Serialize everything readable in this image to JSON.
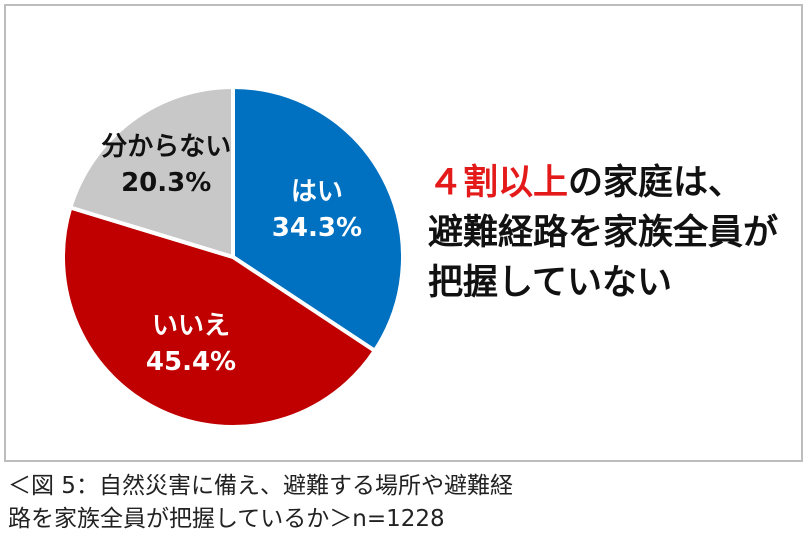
{
  "chart_data": {
    "type": "pie",
    "slices": [
      {
        "label": "はい",
        "value": 34.3,
        "value_label": "34.3%",
        "color": "#0070c0",
        "label_color": "#ffffff"
      },
      {
        "label": "いいえ",
        "value": 45.4,
        "value_label": "45.4%",
        "color": "#c00000",
        "label_color": "#ffffff"
      },
      {
        "label": "分からない",
        "value": 20.3,
        "value_label": "20.3%",
        "color": "#c8c8c8",
        "label_color": "#111111"
      }
    ]
  },
  "headline": {
    "accent": "４割以上",
    "line1_rest": "の家庭は、",
    "line2": "避難経路を家族全員が",
    "line3": "把握していない",
    "accent_color": "#e41a1a"
  },
  "caption": {
    "line1": "＜図 5：自然災害に備え、避難する場所や避難経",
    "line2": "路を家族全員が把握しているか＞n=1228"
  }
}
